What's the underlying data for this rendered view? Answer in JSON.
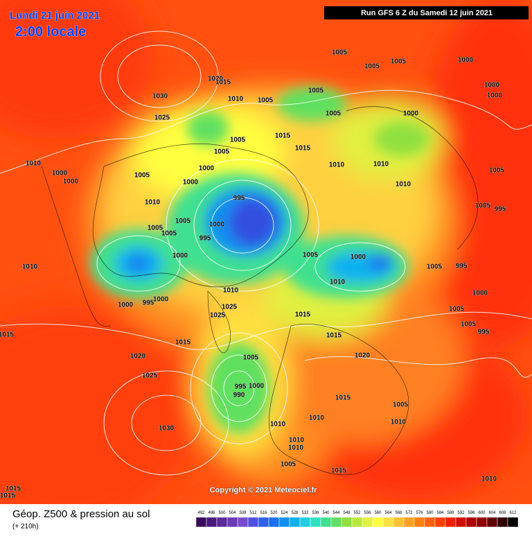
{
  "header": {
    "date": "Lundi 21 juin 2021",
    "time": "2:00 locale",
    "run": "Run GFS 6 Z du Samedi 12 juin 2021"
  },
  "footer": {
    "copyright": "Copyright © 2021 Meteociel.fr",
    "field": "Géop. Z500 & pression au sol",
    "lead": "(+ 210h)"
  },
  "isobar_labels": [
    1005,
    1005,
    1005,
    1000,
    1000,
    1000,
    1030,
    1020,
    1015,
    1010,
    1005,
    1005,
    1005,
    1000,
    1025,
    1015,
    1015,
    1005,
    1005,
    1010,
    1010,
    1010,
    1000,
    1005,
    1000,
    1010,
    1000,
    1000,
    1005,
    1010,
    995,
    1005,
    995,
    1005,
    1000,
    1005,
    1005,
    995,
    1000,
    1005,
    1000,
    1005,
    995,
    1010,
    1010,
    1010,
    1000,
    1000,
    1000,
    995,
    1025,
    1025,
    1015,
    1005,
    1005,
    995,
    1015,
    1015,
    1015,
    1020,
    1020,
    1005,
    1025,
    995,
    1000,
    990,
    1015,
    1005,
    1010,
    1030,
    1010,
    1010,
    1010,
    1010,
    1005,
    1015,
    1010,
    1015,
    1015
  ],
  "scale": {
    "ticks": [
      492,
      496,
      500,
      504,
      508,
      512,
      516,
      520,
      524,
      528,
      532,
      536,
      540,
      544,
      548,
      552,
      556,
      560,
      564,
      568,
      572,
      576,
      580,
      584,
      588,
      592,
      596,
      600,
      604,
      608,
      612
    ],
    "colors": [
      "#3a0a5a",
      "#4a1a7a",
      "#5a2a9a",
      "#6a3ab8",
      "#7a4ad0",
      "#5050e0",
      "#3060e8",
      "#1a70f0",
      "#1090f0",
      "#10b0f0",
      "#20d0e0",
      "#30e0c0",
      "#40e090",
      "#60e060",
      "#90e040",
      "#b8e840",
      "#e0f040",
      "#ffff40",
      "#ffe040",
      "#ffc030",
      "#ffa020",
      "#ff8010",
      "#ff6010",
      "#ff4000",
      "#f02000",
      "#d01000",
      "#b00000",
      "#900000",
      "#600000",
      "#300000",
      "#000000"
    ]
  }
}
